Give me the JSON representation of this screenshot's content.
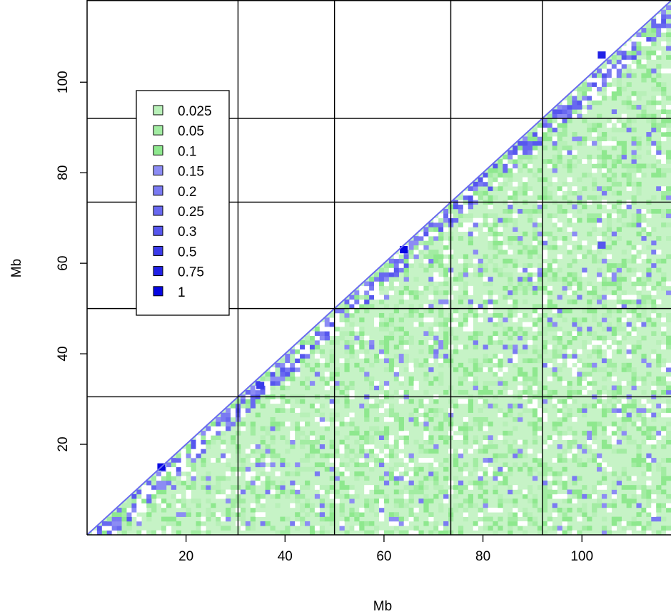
{
  "chart_data": {
    "type": "heatmap",
    "title": "",
    "xlabel": "Mb",
    "ylabel": "Mb",
    "xlim": [
      0,
      118
    ],
    "ylim": [
      0,
      118
    ],
    "x_ticks": [
      20,
      40,
      60,
      80,
      100
    ],
    "y_ticks": [
      20,
      40,
      60,
      80,
      100
    ],
    "x_tick_labels": [
      "20",
      "40",
      "60",
      "80",
      "100"
    ],
    "y_tick_labels": [
      "20",
      "40",
      "60",
      "80",
      "100"
    ],
    "region_boundaries": [
      30.5,
      50,
      73.5,
      92
    ],
    "fill_region": "below diagonal (x > y)",
    "legend": {
      "placement": "upper-left",
      "entries": [
        {
          "label": "0.025",
          "color": "#b8f0b8"
        },
        {
          "label": "0.05",
          "color": "#a2eca2"
        },
        {
          "label": "0.1",
          "color": "#8ee88e"
        },
        {
          "label": "0.15",
          "color": "#8c8cf4"
        },
        {
          "label": "0.2",
          "color": "#7a7af2"
        },
        {
          "label": "0.25",
          "color": "#6868f0"
        },
        {
          "label": "0.3",
          "color": "#5656ee"
        },
        {
          "label": "0.5",
          "color": "#3a3aea"
        },
        {
          "label": "0.75",
          "color": "#2020e6"
        },
        {
          "label": "1",
          "color": "#0606e2"
        }
      ]
    },
    "hotspots": [
      {
        "x": 15,
        "y": 15,
        "level": "1"
      },
      {
        "x": 35,
        "y": 33,
        "level": "0.5"
      },
      {
        "x": 64,
        "y": 63,
        "level": "1"
      },
      {
        "x": 104,
        "y": 106,
        "level": "0.75"
      },
      {
        "x": 104,
        "y": 64,
        "level": "0.3"
      }
    ]
  }
}
